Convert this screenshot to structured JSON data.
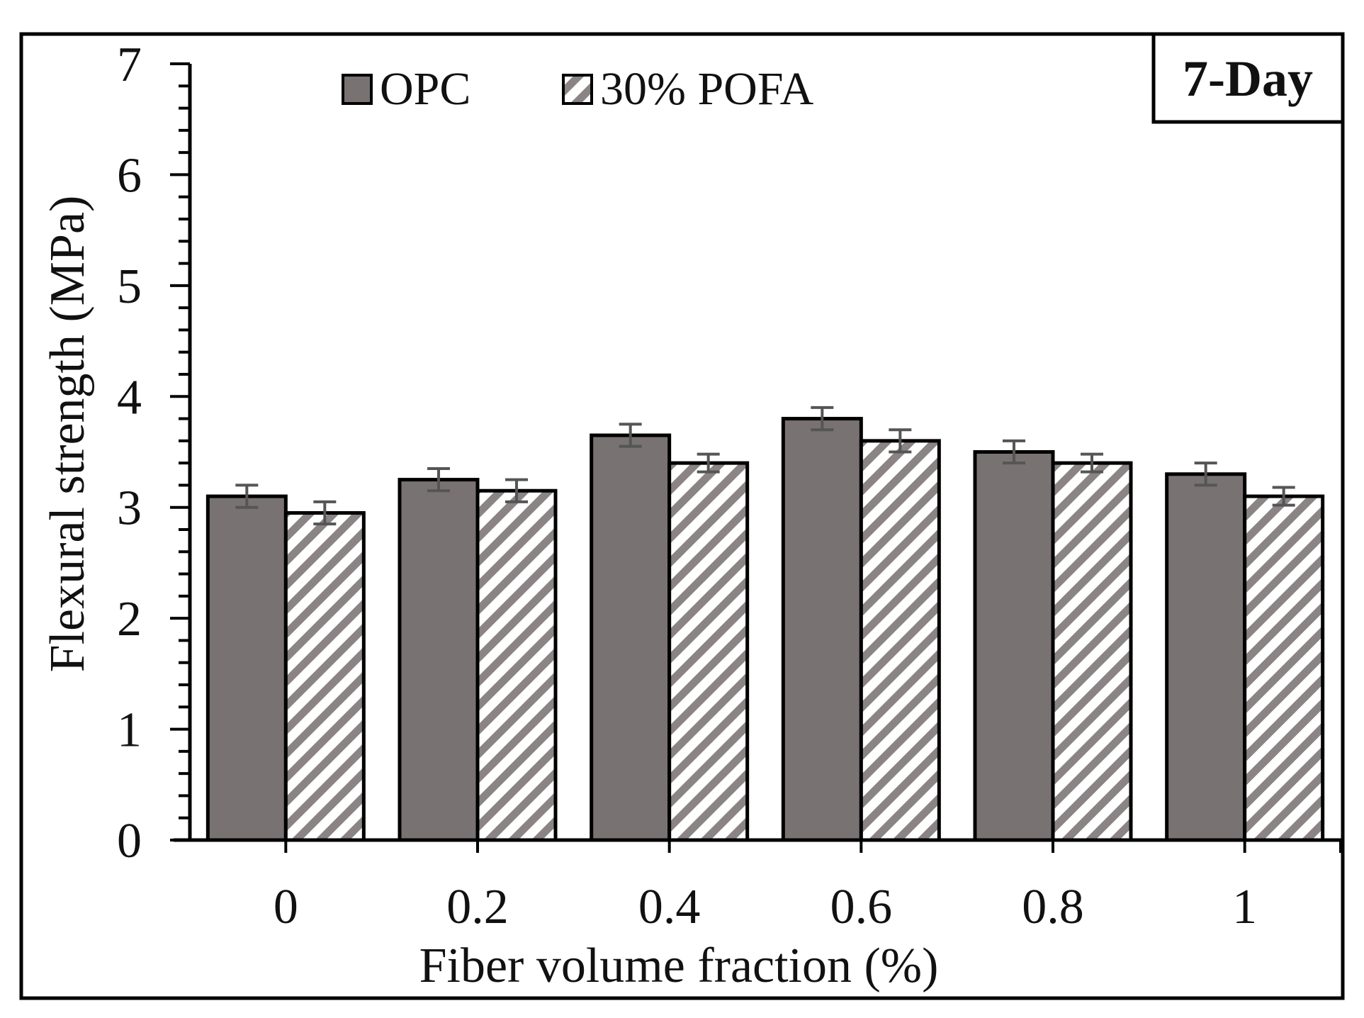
{
  "chart_data": {
    "type": "bar",
    "title": "",
    "badge": "7-Day",
    "xlabel": "Fiber volume fraction (%)",
    "ylabel": "Flexural strength (MPa)",
    "ylim": [
      0,
      7
    ],
    "y_major_ticks": [
      "0",
      "1",
      "2",
      "3",
      "4",
      "5",
      "6",
      "7"
    ],
    "categories": [
      "0",
      "0.2",
      "0.4",
      "0.6",
      "0.8",
      "1"
    ],
    "series": [
      {
        "name": "OPC",
        "pattern": "solid",
        "values": [
          3.1,
          3.25,
          3.65,
          3.8,
          3.5,
          3.3
        ],
        "errors": [
          0.1,
          0.1,
          0.1,
          0.1,
          0.1,
          0.1
        ]
      },
      {
        "name": "30% POFA",
        "pattern": "hatched",
        "values": [
          2.95,
          3.15,
          3.4,
          3.6,
          3.4,
          3.1
        ],
        "errors": [
          0.1,
          0.1,
          0.08,
          0.1,
          0.08,
          0.08
        ]
      }
    ],
    "legend_position": "top",
    "grid": false
  },
  "colors": {
    "opc_fill": "#787372",
    "hatch": "#8a8584",
    "error_bar": "#555555",
    "frame": "#000000"
  }
}
